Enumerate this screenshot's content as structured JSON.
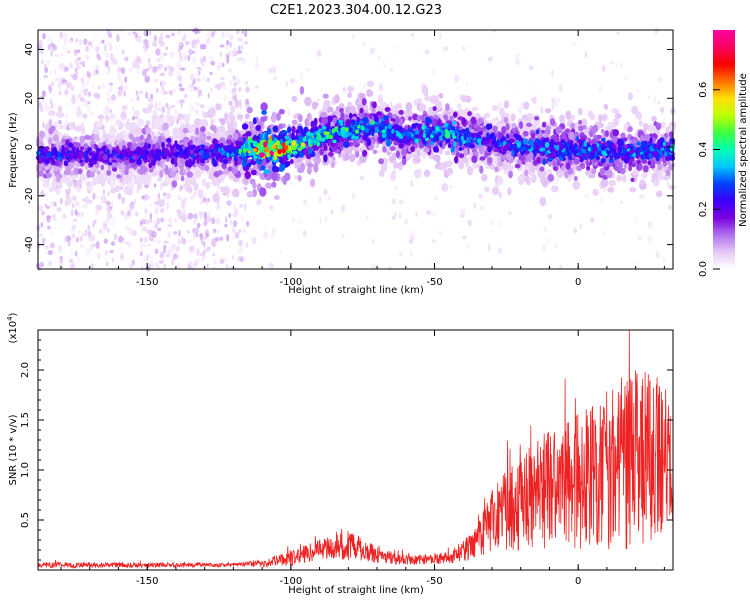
{
  "figure_title": "C2E1.2023.304.00.12.G23",
  "chart_data": [
    {
      "type": "heatmap",
      "xlabel": "Height of straight line (km)",
      "ylabel": "Frequency (Hz)",
      "xlim": [
        -188,
        33
      ],
      "ylim": [
        -50,
        48
      ],
      "x_ticks": [
        -150,
        -100,
        -50,
        0
      ],
      "y_ticks": [
        -40,
        -20,
        0,
        20,
        40
      ],
      "colorbar": {
        "label": "Normalized spectral amplitude",
        "range": [
          0.0,
          0.8
        ],
        "ticks": [
          0.0,
          0.2,
          0.4,
          0.6
        ],
        "colormap": [
          "#ffffff",
          "#e6c8f5",
          "#b070f0",
          "#7a00e0",
          "#3a00ff",
          "#0040ff",
          "#00c8ff",
          "#00ffb0",
          "#40ff40",
          "#c0ff00",
          "#ffe000",
          "#ff7000",
          "#ff0000",
          "#ff0060",
          "#ff00a0"
        ]
      },
      "ridge_center_hz": [
        {
          "x": -188,
          "y": -4
        },
        {
          "x": -175,
          "y": -3
        },
        {
          "x": -160,
          "y": -4
        },
        {
          "x": -150,
          "y": -3
        },
        {
          "x": -140,
          "y": -2
        },
        {
          "x": -130,
          "y": -3
        },
        {
          "x": -120,
          "y": -2
        },
        {
          "x": -110,
          "y": -1
        },
        {
          "x": -100,
          "y": 0
        },
        {
          "x": -90,
          "y": 4
        },
        {
          "x": -80,
          "y": 7
        },
        {
          "x": -70,
          "y": 8
        },
        {
          "x": -60,
          "y": 4
        },
        {
          "x": -50,
          "y": 6
        },
        {
          "x": -40,
          "y": 4
        },
        {
          "x": -30,
          "y": 2
        },
        {
          "x": -20,
          "y": 0
        },
        {
          "x": -10,
          "y": -1
        },
        {
          "x": 0,
          "y": -1
        },
        {
          "x": 10,
          "y": -2
        },
        {
          "x": 20,
          "y": -2
        },
        {
          "x": 33,
          "y": -1
        }
      ],
      "ridge_amplitude": [
        {
          "x": -188,
          "v": 0.25
        },
        {
          "x": -160,
          "v": 0.22
        },
        {
          "x": -140,
          "v": 0.22
        },
        {
          "x": -120,
          "v": 0.28
        },
        {
          "x": -108,
          "v": 0.7
        },
        {
          "x": -100,
          "v": 0.5
        },
        {
          "x": -85,
          "v": 0.4
        },
        {
          "x": -75,
          "v": 0.35
        },
        {
          "x": -60,
          "v": 0.3
        },
        {
          "x": -45,
          "v": 0.35
        },
        {
          "x": -30,
          "v": 0.25
        },
        {
          "x": -15,
          "v": 0.3
        },
        {
          "x": 0,
          "v": 0.3
        },
        {
          "x": 15,
          "v": 0.3
        },
        {
          "x": 33,
          "v": 0.3
        }
      ],
      "noise_region_x": [
        -188,
        -115
      ]
    },
    {
      "type": "line",
      "xlabel": "Height of straight line (km)",
      "ylabel": "SNR (10 * v/v)",
      "y_multiplier": "(x10^4)",
      "xlim": [
        -188,
        33
      ],
      "ylim": [
        0,
        2.4
      ],
      "x_ticks": [
        -150,
        -100,
        -50,
        0
      ],
      "y_ticks": [
        0.5,
        1.0,
        1.5,
        2.0
      ],
      "series": [
        {
          "color": "#ee2222",
          "envelope": [
            {
              "x": -188,
              "mean": 0.05,
              "spread": 0.03
            },
            {
              "x": -120,
              "mean": 0.05,
              "spread": 0.02
            },
            {
              "x": -110,
              "mean": 0.07,
              "spread": 0.04
            },
            {
              "x": -100,
              "mean": 0.12,
              "spread": 0.08
            },
            {
              "x": -90,
              "mean": 0.2,
              "spread": 0.1
            },
            {
              "x": -80,
              "mean": 0.24,
              "spread": 0.15
            },
            {
              "x": -70,
              "mean": 0.15,
              "spread": 0.08
            },
            {
              "x": -60,
              "mean": 0.1,
              "spread": 0.05
            },
            {
              "x": -45,
              "mean": 0.12,
              "spread": 0.06
            },
            {
              "x": -36,
              "mean": 0.25,
              "spread": 0.15
            },
            {
              "x": -30,
              "mean": 0.5,
              "spread": 0.3
            },
            {
              "x": -20,
              "mean": 0.7,
              "spread": 0.5
            },
            {
              "x": -10,
              "mean": 0.8,
              "spread": 0.6
            },
            {
              "x": 0,
              "mean": 0.9,
              "spread": 0.7
            },
            {
              "x": 10,
              "mean": 1.0,
              "spread": 0.8
            },
            {
              "x": 20,
              "mean": 1.1,
              "spread": 0.9
            },
            {
              "x": 33,
              "mean": 1.2,
              "spread": 0.8
            }
          ]
        }
      ]
    }
  ]
}
